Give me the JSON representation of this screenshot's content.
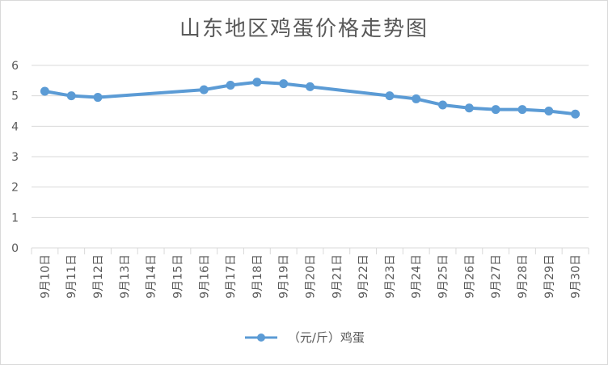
{
  "chart_data": {
    "type": "line",
    "title": "山东地区鸡蛋价格走势图",
    "xlabel": "",
    "ylabel": "",
    "ylim": [
      0,
      6
    ],
    "yticks": [
      "0",
      "1",
      "2",
      "3",
      "4",
      "5",
      "6"
    ],
    "categories": [
      "9月10日",
      "9月11日",
      "9月12日",
      "9月13日",
      "9月14日",
      "9月15日",
      "9月16日",
      "9月17日",
      "9月18日",
      "9月19日",
      "9月20日",
      "9月21日",
      "9月22日",
      "9月23日",
      "9月24日",
      "9月25日",
      "9月26日",
      "9月27日",
      "9月28日",
      "9月29日",
      "9月30日"
    ],
    "series": [
      {
        "name": "（元/斤）鸡蛋",
        "color": "#5b9bd5",
        "values": [
          5.15,
          5.0,
          4.95,
          null,
          null,
          null,
          5.2,
          5.35,
          5.45,
          5.4,
          5.3,
          null,
          null,
          5.0,
          4.9,
          4.7,
          4.6,
          4.55,
          4.55,
          4.5,
          4.4
        ]
      }
    ],
    "grid": true,
    "legend_position": "bottom"
  }
}
